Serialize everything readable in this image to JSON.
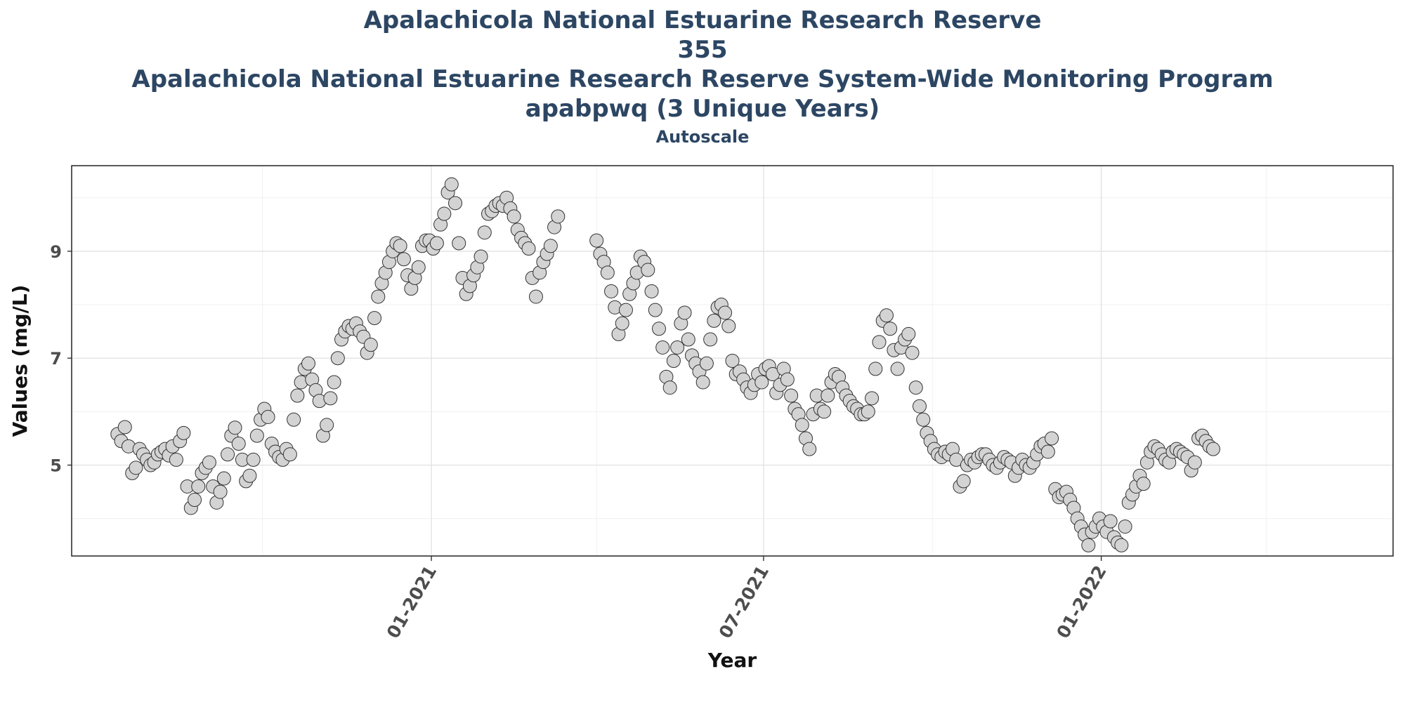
{
  "chart_data": {
    "type": "scatter",
    "title_lines": [
      "Apalachicola National Estuarine Research Reserve",
      "355",
      "Apalachicola National Estuarine Research Reserve System-Wide Monitoring Program",
      "apabpwq (3 Unique Years)"
    ],
    "subtitle": "Autoscale",
    "xlabel": "Year",
    "ylabel": "Values (mg/L)",
    "x_ticks": [
      "01-2021",
      "07-2021",
      "01-2022"
    ],
    "y_ticks": [
      5,
      7,
      9
    ],
    "xlim": [
      "2020-06-19",
      "2022-06-09"
    ],
    "ylim": [
      3.3,
      10.6
    ],
    "grid": true,
    "marker_fill": "#d3d3d3",
    "marker_stroke": "#333333",
    "points": [
      [
        "2020-07-14",
        5.58
      ],
      [
        "2020-07-16",
        5.45
      ],
      [
        "2020-07-18",
        5.71
      ],
      [
        "2020-07-20",
        5.35
      ],
      [
        "2020-07-22",
        4.85
      ],
      [
        "2020-07-24",
        4.95
      ],
      [
        "2020-07-26",
        5.3
      ],
      [
        "2020-07-28",
        5.2
      ],
      [
        "2020-07-30",
        5.1
      ],
      [
        "2020-08-01",
        5.0
      ],
      [
        "2020-08-03",
        5.05
      ],
      [
        "2020-08-05",
        5.2
      ],
      [
        "2020-08-07",
        5.25
      ],
      [
        "2020-08-09",
        5.3
      ],
      [
        "2020-08-11",
        5.18
      ],
      [
        "2020-08-13",
        5.35
      ],
      [
        "2020-08-15",
        5.1
      ],
      [
        "2020-08-17",
        5.45
      ],
      [
        "2020-08-19",
        5.6
      ],
      [
        "2020-08-21",
        4.6
      ],
      [
        "2020-08-23",
        4.2
      ],
      [
        "2020-08-25",
        4.35
      ],
      [
        "2020-08-27",
        4.6
      ],
      [
        "2020-08-29",
        4.85
      ],
      [
        "2020-08-31",
        4.95
      ],
      [
        "2020-09-02",
        5.05
      ],
      [
        "2020-09-04",
        4.6
      ],
      [
        "2020-09-06",
        4.3
      ],
      [
        "2020-09-08",
        4.5
      ],
      [
        "2020-09-10",
        4.75
      ],
      [
        "2020-09-12",
        5.2
      ],
      [
        "2020-09-14",
        5.55
      ],
      [
        "2020-09-16",
        5.7
      ],
      [
        "2020-09-18",
        5.4
      ],
      [
        "2020-09-20",
        5.1
      ],
      [
        "2020-09-22",
        4.7
      ],
      [
        "2020-09-24",
        4.8
      ],
      [
        "2020-09-26",
        5.1
      ],
      [
        "2020-09-28",
        5.55
      ],
      [
        "2020-09-30",
        5.85
      ],
      [
        "2020-10-02",
        6.05
      ],
      [
        "2020-10-04",
        5.9
      ],
      [
        "2020-10-06",
        5.4
      ],
      [
        "2020-10-08",
        5.25
      ],
      [
        "2020-10-10",
        5.15
      ],
      [
        "2020-10-12",
        5.1
      ],
      [
        "2020-10-14",
        5.3
      ],
      [
        "2020-10-16",
        5.2
      ],
      [
        "2020-10-18",
        5.85
      ],
      [
        "2020-10-20",
        6.3
      ],
      [
        "2020-10-22",
        6.55
      ],
      [
        "2020-10-24",
        6.8
      ],
      [
        "2020-10-26",
        6.9
      ],
      [
        "2020-10-28",
        6.6
      ],
      [
        "2020-10-30",
        6.4
      ],
      [
        "2020-11-01",
        6.2
      ],
      [
        "2020-11-03",
        5.55
      ],
      [
        "2020-11-05",
        5.75
      ],
      [
        "2020-11-07",
        6.25
      ],
      [
        "2020-11-09",
        6.55
      ],
      [
        "2020-11-11",
        7.0
      ],
      [
        "2020-11-13",
        7.35
      ],
      [
        "2020-11-15",
        7.5
      ],
      [
        "2020-11-17",
        7.6
      ],
      [
        "2020-11-19",
        7.55
      ],
      [
        "2020-11-21",
        7.65
      ],
      [
        "2020-11-23",
        7.5
      ],
      [
        "2020-11-25",
        7.4
      ],
      [
        "2020-11-27",
        7.1
      ],
      [
        "2020-11-29",
        7.25
      ],
      [
        "2020-12-01",
        7.75
      ],
      [
        "2020-12-03",
        8.15
      ],
      [
        "2020-12-05",
        8.4
      ],
      [
        "2020-12-07",
        8.6
      ],
      [
        "2020-12-09",
        8.8
      ],
      [
        "2020-12-11",
        9.0
      ],
      [
        "2020-12-13",
        9.15
      ],
      [
        "2020-12-15",
        9.1
      ],
      [
        "2020-12-17",
        8.85
      ],
      [
        "2020-12-19",
        8.55
      ],
      [
        "2020-12-21",
        8.3
      ],
      [
        "2020-12-23",
        8.5
      ],
      [
        "2020-12-25",
        8.7
      ],
      [
        "2020-12-27",
        9.1
      ],
      [
        "2020-12-29",
        9.2
      ],
      [
        "2020-12-31",
        9.2
      ],
      [
        "2021-01-02",
        9.05
      ],
      [
        "2021-01-04",
        9.15
      ],
      [
        "2021-01-06",
        9.5
      ],
      [
        "2021-01-08",
        9.7
      ],
      [
        "2021-01-10",
        10.1
      ],
      [
        "2021-01-12",
        10.25
      ],
      [
        "2021-01-14",
        9.9
      ],
      [
        "2021-01-16",
        9.15
      ],
      [
        "2021-01-18",
        8.5
      ],
      [
        "2021-01-20",
        8.2
      ],
      [
        "2021-01-22",
        8.35
      ],
      [
        "2021-01-24",
        8.55
      ],
      [
        "2021-01-26",
        8.7
      ],
      [
        "2021-01-28",
        8.9
      ],
      [
        "2021-01-30",
        9.35
      ],
      [
        "2021-02-01",
        9.7
      ],
      [
        "2021-02-03",
        9.75
      ],
      [
        "2021-02-05",
        9.85
      ],
      [
        "2021-02-07",
        9.9
      ],
      [
        "2021-02-09",
        9.85
      ],
      [
        "2021-02-11",
        10.0
      ],
      [
        "2021-02-13",
        9.8
      ],
      [
        "2021-02-15",
        9.65
      ],
      [
        "2021-02-17",
        9.4
      ],
      [
        "2021-02-19",
        9.25
      ],
      [
        "2021-02-21",
        9.15
      ],
      [
        "2021-02-23",
        9.05
      ],
      [
        "2021-02-25",
        8.5
      ],
      [
        "2021-02-27",
        8.15
      ],
      [
        "2021-03-01",
        8.6
      ],
      [
        "2021-03-03",
        8.8
      ],
      [
        "2021-03-05",
        8.95
      ],
      [
        "2021-03-07",
        9.1
      ],
      [
        "2021-03-09",
        9.45
      ],
      [
        "2021-03-11",
        9.65
      ],
      [
        "2021-04-01",
        9.2
      ],
      [
        "2021-04-03",
        8.95
      ],
      [
        "2021-04-05",
        8.8
      ],
      [
        "2021-04-07",
        8.6
      ],
      [
        "2021-04-09",
        8.25
      ],
      [
        "2021-04-11",
        7.95
      ],
      [
        "2021-04-13",
        7.45
      ],
      [
        "2021-04-15",
        7.65
      ],
      [
        "2021-04-17",
        7.9
      ],
      [
        "2021-04-19",
        8.2
      ],
      [
        "2021-04-21",
        8.4
      ],
      [
        "2021-04-23",
        8.6
      ],
      [
        "2021-04-25",
        8.9
      ],
      [
        "2021-04-27",
        8.8
      ],
      [
        "2021-04-29",
        8.65
      ],
      [
        "2021-05-01",
        8.25
      ],
      [
        "2021-05-03",
        7.9
      ],
      [
        "2021-05-05",
        7.55
      ],
      [
        "2021-05-07",
        7.2
      ],
      [
        "2021-05-09",
        6.65
      ],
      [
        "2021-05-11",
        6.45
      ],
      [
        "2021-05-13",
        6.95
      ],
      [
        "2021-05-15",
        7.2
      ],
      [
        "2021-05-17",
        7.65
      ],
      [
        "2021-05-19",
        7.85
      ],
      [
        "2021-05-21",
        7.35
      ],
      [
        "2021-05-23",
        7.05
      ],
      [
        "2021-05-25",
        6.9
      ],
      [
        "2021-05-27",
        6.75
      ],
      [
        "2021-05-29",
        6.55
      ],
      [
        "2021-05-31",
        6.9
      ],
      [
        "2021-06-02",
        7.35
      ],
      [
        "2021-06-04",
        7.7
      ],
      [
        "2021-06-06",
        7.95
      ],
      [
        "2021-06-08",
        8.0
      ],
      [
        "2021-06-10",
        7.85
      ],
      [
        "2021-06-12",
        7.6
      ],
      [
        "2021-06-14",
        6.95
      ],
      [
        "2021-06-16",
        6.7
      ],
      [
        "2021-06-18",
        6.75
      ],
      [
        "2021-06-20",
        6.6
      ],
      [
        "2021-06-22",
        6.45
      ],
      [
        "2021-06-24",
        6.35
      ],
      [
        "2021-06-26",
        6.5
      ],
      [
        "2021-06-28",
        6.7
      ],
      [
        "2021-06-30",
        6.55
      ],
      [
        "2021-07-02",
        6.8
      ],
      [
        "2021-07-04",
        6.85
      ],
      [
        "2021-07-06",
        6.7
      ],
      [
        "2021-07-08",
        6.35
      ],
      [
        "2021-07-10",
        6.5
      ],
      [
        "2021-07-12",
        6.8
      ],
      [
        "2021-07-14",
        6.6
      ],
      [
        "2021-07-16",
        6.3
      ],
      [
        "2021-07-18",
        6.05
      ],
      [
        "2021-07-20",
        5.95
      ],
      [
        "2021-07-22",
        5.75
      ],
      [
        "2021-07-24",
        5.5
      ],
      [
        "2021-07-26",
        5.3
      ],
      [
        "2021-07-28",
        5.95
      ],
      [
        "2021-07-30",
        6.3
      ],
      [
        "2021-08-01",
        6.05
      ],
      [
        "2021-08-03",
        6.0
      ],
      [
        "2021-08-05",
        6.3
      ],
      [
        "2021-08-07",
        6.55
      ],
      [
        "2021-08-09",
        6.7
      ],
      [
        "2021-08-11",
        6.65
      ],
      [
        "2021-08-13",
        6.45
      ],
      [
        "2021-08-15",
        6.3
      ],
      [
        "2021-08-17",
        6.2
      ],
      [
        "2021-08-19",
        6.1
      ],
      [
        "2021-08-21",
        6.05
      ],
      [
        "2021-08-23",
        5.95
      ],
      [
        "2021-08-25",
        5.95
      ],
      [
        "2021-08-27",
        6.0
      ],
      [
        "2021-08-29",
        6.25
      ],
      [
        "2021-08-31",
        6.8
      ],
      [
        "2021-09-02",
        7.3
      ],
      [
        "2021-09-04",
        7.7
      ],
      [
        "2021-09-06",
        7.8
      ],
      [
        "2021-09-08",
        7.55
      ],
      [
        "2021-09-10",
        7.15
      ],
      [
        "2021-09-12",
        6.8
      ],
      [
        "2021-09-14",
        7.2
      ],
      [
        "2021-09-16",
        7.35
      ],
      [
        "2021-09-18",
        7.45
      ],
      [
        "2021-09-20",
        7.1
      ],
      [
        "2021-09-22",
        6.45
      ],
      [
        "2021-09-24",
        6.1
      ],
      [
        "2021-09-26",
        5.85
      ],
      [
        "2021-09-28",
        5.6
      ],
      [
        "2021-09-30",
        5.45
      ],
      [
        "2021-10-02",
        5.3
      ],
      [
        "2021-10-04",
        5.2
      ],
      [
        "2021-10-06",
        5.15
      ],
      [
        "2021-10-08",
        5.25
      ],
      [
        "2021-10-10",
        5.2
      ],
      [
        "2021-10-12",
        5.3
      ],
      [
        "2021-10-14",
        5.1
      ],
      [
        "2021-10-16",
        4.6
      ],
      [
        "2021-10-18",
        4.7
      ],
      [
        "2021-10-20",
        5.0
      ],
      [
        "2021-10-22",
        5.1
      ],
      [
        "2021-10-24",
        5.05
      ],
      [
        "2021-10-26",
        5.15
      ],
      [
        "2021-10-28",
        5.2
      ],
      [
        "2021-10-30",
        5.2
      ],
      [
        "2021-11-01",
        5.1
      ],
      [
        "2021-11-03",
        5.0
      ],
      [
        "2021-11-05",
        4.95
      ],
      [
        "2021-11-07",
        5.05
      ],
      [
        "2021-11-09",
        5.15
      ],
      [
        "2021-11-11",
        5.1
      ],
      [
        "2021-11-13",
        5.05
      ],
      [
        "2021-11-15",
        4.8
      ],
      [
        "2021-11-17",
        4.95
      ],
      [
        "2021-11-19",
        5.1
      ],
      [
        "2021-11-21",
        5.0
      ],
      [
        "2021-11-23",
        4.95
      ],
      [
        "2021-11-25",
        5.05
      ],
      [
        "2021-11-27",
        5.2
      ],
      [
        "2021-11-29",
        5.35
      ],
      [
        "2021-12-01",
        5.4
      ],
      [
        "2021-12-03",
        5.25
      ],
      [
        "2021-12-05",
        5.5
      ],
      [
        "2021-12-07",
        4.55
      ],
      [
        "2021-12-09",
        4.4
      ],
      [
        "2021-12-11",
        4.45
      ],
      [
        "2021-12-13",
        4.5
      ],
      [
        "2021-12-15",
        4.35
      ],
      [
        "2021-12-17",
        4.2
      ],
      [
        "2021-12-19",
        4.0
      ],
      [
        "2021-12-21",
        3.85
      ],
      [
        "2021-12-23",
        3.7
      ],
      [
        "2021-12-25",
        3.5
      ],
      [
        "2021-12-27",
        3.75
      ],
      [
        "2021-12-29",
        3.85
      ],
      [
        "2021-12-31",
        4.0
      ],
      [
        "2022-01-02",
        3.85
      ],
      [
        "2022-01-04",
        3.75
      ],
      [
        "2022-01-06",
        3.95
      ],
      [
        "2022-01-08",
        3.65
      ],
      [
        "2022-01-10",
        3.55
      ],
      [
        "2022-01-12",
        3.5
      ],
      [
        "2022-01-14",
        3.85
      ],
      [
        "2022-01-16",
        4.3
      ],
      [
        "2022-01-18",
        4.45
      ],
      [
        "2022-01-20",
        4.6
      ],
      [
        "2022-01-22",
        4.8
      ],
      [
        "2022-01-24",
        4.65
      ],
      [
        "2022-01-26",
        5.05
      ],
      [
        "2022-01-28",
        5.25
      ],
      [
        "2022-01-30",
        5.35
      ],
      [
        "2022-02-01",
        5.3
      ],
      [
        "2022-02-03",
        5.2
      ],
      [
        "2022-02-05",
        5.1
      ],
      [
        "2022-02-07",
        5.05
      ],
      [
        "2022-02-09",
        5.25
      ],
      [
        "2022-02-11",
        5.3
      ],
      [
        "2022-02-13",
        5.25
      ],
      [
        "2022-02-15",
        5.2
      ],
      [
        "2022-02-17",
        5.15
      ],
      [
        "2022-02-19",
        4.9
      ],
      [
        "2022-02-21",
        5.05
      ],
      [
        "2022-02-23",
        5.5
      ],
      [
        "2022-02-25",
        5.55
      ],
      [
        "2022-02-27",
        5.45
      ],
      [
        "2022-03-01",
        5.35
      ],
      [
        "2022-03-03",
        5.3
      ]
    ]
  }
}
